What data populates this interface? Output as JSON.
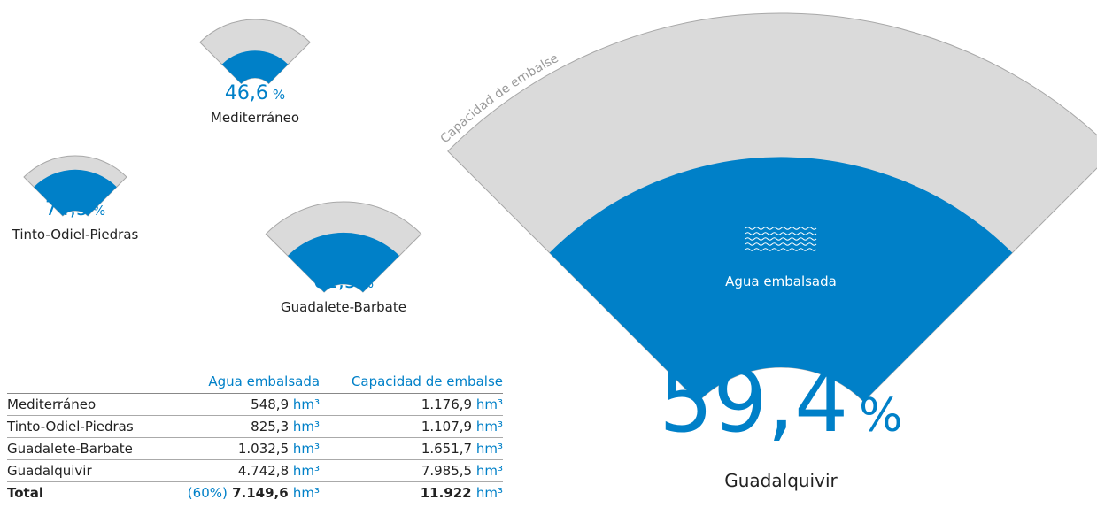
{
  "gauges": [
    {
      "name": "Mediterráneo",
      "value": 46.6,
      "value_label": "46,6"
    },
    {
      "name": "Tinto-Odiel-Piedras",
      "value": 74.5,
      "value_label": "74,5"
    },
    {
      "name": "Guadalete-Barbate",
      "value": 62.5,
      "value_label": "62,5"
    },
    {
      "name": "Guadalquivir",
      "value": 59.4,
      "value_label": "59,4"
    }
  ],
  "unit": "%",
  "capacity_label": "Capacidad de embalse",
  "water_label": "Agua embalsada",
  "table": {
    "columns": [
      "Agua embalsada",
      "Capacidad de embalse"
    ],
    "unit": "hm³",
    "rows": [
      [
        "Mediterráneo",
        "548,9",
        "1.176,9"
      ],
      [
        "Tinto-Odiel-Piedras",
        "825,3",
        "1.107,9"
      ],
      [
        "Guadalete-Barbate",
        "1.032,5",
        "1.651,7"
      ],
      [
        "Guadalquivir",
        "4.742,8",
        "7.985,5"
      ]
    ],
    "total": {
      "label": "Total",
      "share": "(60%)",
      "water": "7.149,6",
      "capacity": "11.922"
    }
  }
}
